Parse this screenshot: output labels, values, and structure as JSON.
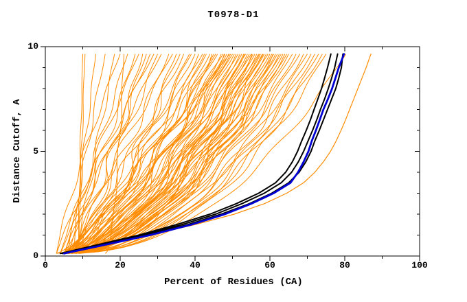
{
  "title": "T0978-D1",
  "colors": {
    "orange": "#ff8c00",
    "black": "#000000",
    "blue": "#0000d5",
    "background": "#ffffff",
    "text": "#000000"
  },
  "chart_data": {
    "type": "line",
    "title": "T0978-D1",
    "xlabel": "Percent of Residues (CA)",
    "ylabel": "Distance Cutoff, A",
    "xlim": [
      0,
      100
    ],
    "ylim": [
      0,
      10
    ],
    "x_major_ticks": [
      0,
      20,
      40,
      60,
      80,
      100
    ],
    "x_minor_ticks": [
      10,
      30,
      50,
      70,
      90
    ],
    "y_major_ticks": [
      0,
      5,
      10
    ],
    "y_minor_ticks": [
      1,
      2,
      3,
      4,
      6,
      7,
      8,
      9
    ],
    "grid": false,
    "legend": "none",
    "curve_y_start": 0.12,
    "curve_y_top": 9.65,
    "y_grid": [
      0.12,
      0.5,
      1,
      1.5,
      2,
      2.5,
      3,
      3.5,
      4,
      4.5,
      5,
      5.5,
      6,
      6.5,
      7,
      7.5,
      8,
      8.5,
      9,
      9.65
    ],
    "highlight_series": [
      {
        "name": "orange-outlier-model",
        "color": "orange",
        "width": 1.2,
        "x": [
          4,
          14,
          27.5,
          40,
          50.5,
          58.5,
          64.5,
          69,
          72,
          74.3,
          76.2,
          77.7,
          79,
          80.2,
          81.3,
          82.4,
          83.5,
          84.6,
          85.7,
          87
        ]
      },
      {
        "name": "black-model-1",
        "color": "black",
        "width": 2,
        "x": [
          4,
          13,
          25,
          35,
          44,
          51,
          57,
          61.5,
          64.2,
          66,
          67.4,
          68.5,
          69.7,
          70.8,
          71.8,
          72.8,
          73.8,
          74.6,
          75.4,
          76.3
        ]
      },
      {
        "name": "black-model-2",
        "color": "black",
        "width": 2,
        "x": [
          4.5,
          13.5,
          26,
          36.5,
          45.5,
          52.5,
          58.5,
          63,
          65.8,
          67.6,
          69,
          70.2,
          71.4,
          72.5,
          73.5,
          74.6,
          75.6,
          76.5,
          77.3,
          78.1
        ]
      },
      {
        "name": "black-model-3",
        "color": "black",
        "width": 2,
        "x": [
          4.5,
          14,
          27,
          38,
          47,
          54.5,
          60.5,
          65,
          67.8,
          69.6,
          71,
          72,
          73.2,
          74.3,
          75.4,
          76.5,
          77.6,
          78.4,
          79.1,
          79.5
        ]
      },
      {
        "name": "blue-model",
        "color": "blue",
        "width": 2.8,
        "x": [
          5,
          15,
          28,
          39,
          48,
          55,
          61,
          65.5,
          67.5,
          69,
          70.3,
          71.2,
          72.3,
          73.3,
          74.3,
          75.5,
          76.6,
          77.5,
          78.4,
          79.8
        ]
      }
    ],
    "orange_model_curves": {
      "color": "orange",
      "width": 1,
      "params_format": [
        "x_start_percent",
        "x_top_percent",
        "shape_exponent",
        "wobble_amp",
        "wobble_phase"
      ],
      "params": [
        [
          8.8,
          10,
          1.15,
          0.15,
          0.5
        ],
        [
          9,
          10.6,
          1.25,
          0.2,
          2
        ],
        [
          7.5,
          13.5,
          1.1,
          0.4,
          1.2
        ],
        [
          6,
          16,
          1.05,
          0.5,
          2.8
        ],
        [
          8,
          18.5,
          0.95,
          0.6,
          0.3
        ],
        [
          16,
          21,
          0.5,
          0.3,
          1.8
        ],
        [
          5,
          22,
          1,
          0.8,
          1
        ],
        [
          6,
          24,
          0.95,
          1,
          2.2
        ],
        [
          4,
          25,
          1.1,
          0.7,
          0.7
        ],
        [
          7,
          27,
          0.9,
          1.2,
          1.5
        ],
        [
          5,
          28,
          1,
          0.9,
          2.9
        ],
        [
          6,
          30,
          0.85,
          1.1,
          0.2
        ],
        [
          4,
          31,
          1.05,
          0.8,
          1.9
        ],
        [
          7,
          33,
          0.9,
          1.3,
          2.5
        ],
        [
          5,
          34,
          1,
          1,
          0.9
        ],
        [
          5,
          36,
          0.8,
          1.2,
          1.4
        ],
        [
          6,
          37,
          0.85,
          1.5,
          2.7
        ],
        [
          4,
          38.5,
          0.75,
          1,
          0.5
        ],
        [
          7,
          40,
          0.8,
          1.4,
          1.8
        ],
        [
          5,
          41,
          0.7,
          1.2,
          3
        ],
        [
          6,
          42,
          0.8,
          1.6,
          0.8
        ],
        [
          4,
          43,
          0.75,
          1.1,
          2.1
        ],
        [
          7,
          44,
          0.7,
          1.3,
          1.1
        ],
        [
          5,
          45,
          0.8,
          1.5,
          2.4
        ],
        [
          6,
          45.5,
          0.72,
          1,
          0.1
        ],
        [
          4,
          46,
          0.78,
          1.4,
          1.6
        ],
        [
          7,
          47,
          0.68,
          1.2,
          2.8
        ],
        [
          5,
          47.5,
          0.75,
          1.5,
          0.6
        ],
        [
          6,
          48,
          0.7,
          1.1,
          1.9
        ],
        [
          4,
          48.5,
          0.72,
          1.3,
          3.1
        ],
        [
          7,
          49,
          0.65,
          1,
          1.3
        ],
        [
          5,
          49.5,
          0.7,
          1.4,
          2.2
        ],
        [
          6,
          50,
          0.68,
          1.2,
          0.4
        ],
        [
          4,
          50.5,
          0.66,
          1.2,
          1.7
        ],
        [
          6,
          51,
          0.6,
          1,
          2.9
        ],
        [
          5,
          51.5,
          0.64,
          1.4,
          0.8
        ],
        [
          7,
          52,
          0.58,
          1.1,
          2
        ],
        [
          4,
          52.5,
          0.62,
          1.3,
          1.2
        ],
        [
          6,
          53,
          0.6,
          1,
          2.6
        ],
        [
          5,
          53.5,
          0.63,
          1.2,
          0.3
        ],
        [
          7,
          54,
          0.57,
          1.4,
          1.5
        ],
        [
          4,
          54.5,
          0.6,
          1.1,
          2.8
        ],
        [
          6,
          55,
          0.62,
          1.3,
          0.9
        ],
        [
          5,
          55.5,
          0.58,
          1,
          2.3
        ],
        [
          7,
          56,
          0.6,
          1.2,
          1
        ],
        [
          4,
          56.5,
          0.56,
          1.4,
          2.5
        ],
        [
          6,
          57,
          0.6,
          1.1,
          0.6
        ],
        [
          5,
          57.5,
          0.55,
          1.3,
          1.8
        ],
        [
          7,
          58,
          0.58,
          1,
          3
        ],
        [
          4,
          58.5,
          0.56,
          1.2,
          1.4
        ],
        [
          6,
          59,
          0.54,
          1.4,
          2.7
        ],
        [
          5,
          59.5,
          0.57,
          1.1,
          0.2
        ],
        [
          7,
          60,
          0.55,
          1.3,
          1.6
        ],
        [
          4,
          60.5,
          0.53,
          1,
          2.9
        ],
        [
          6,
          61,
          0.55,
          1.2,
          0.7
        ],
        [
          5,
          61.5,
          0.52,
          1.4,
          2.1
        ],
        [
          7,
          62,
          0.54,
          1.1,
          1.2
        ],
        [
          4,
          62.5,
          0.5,
          1.3,
          2.4
        ],
        [
          6,
          63,
          0.53,
          1,
          0.5
        ],
        [
          5,
          63.5,
          0.51,
          1.2,
          1.9
        ],
        [
          7,
          64,
          0.52,
          1.4,
          3.1
        ],
        [
          4,
          64.5,
          0.5,
          1.1,
          1.1
        ],
        [
          6,
          65,
          0.51,
          1.3,
          2.2
        ],
        [
          5,
          66,
          0.5,
          1,
          0.8
        ],
        [
          6,
          67,
          0.48,
          1.2,
          2
        ],
        [
          4,
          68,
          0.5,
          1.1,
          1.3
        ],
        [
          7,
          69,
          0.47,
          1.3,
          2.6
        ],
        [
          5,
          70,
          0.48,
          1,
          0.4
        ],
        [
          6,
          71,
          0.46,
          1.2,
          1.7
        ],
        [
          4,
          72,
          0.47,
          1.1,
          2.9
        ],
        [
          6,
          73,
          0.45,
          1,
          1
        ],
        [
          5,
          74,
          0.46,
          1.2,
          2.3
        ],
        [
          6,
          75,
          0.45,
          1.1,
          0.6
        ],
        [
          5,
          80.3,
          0.45,
          0.8,
          1.4
        ],
        [
          8,
          26,
          0.8,
          1.5,
          2
        ],
        [
          9,
          35,
          0.75,
          1.8,
          1
        ],
        [
          8,
          39,
          0.85,
          1.6,
          0.4
        ],
        [
          9,
          44.5,
          0.6,
          1.7,
          2.6
        ],
        [
          8,
          53.2,
          0.5,
          1.8,
          1.3
        ],
        [
          9,
          57.2,
          0.48,
          1.6,
          0.2
        ],
        [
          8,
          60.8,
          0.47,
          1.7,
          2.4
        ],
        [
          9,
          47.8,
          0.55,
          1.9,
          1.7
        ],
        [
          8,
          42.5,
          0.65,
          1.8,
          0.9
        ],
        [
          9,
          55.2,
          0.52,
          1.7,
          2.9
        ],
        [
          3,
          20,
          1.2,
          0.6,
          1.5
        ],
        [
          3,
          29,
          1.1,
          0.9,
          2.4
        ],
        [
          3,
          49.2,
          0.8,
          1.5,
          0.7
        ],
        [
          3,
          58.2,
          0.6,
          1.4,
          2.1
        ]
      ]
    }
  }
}
